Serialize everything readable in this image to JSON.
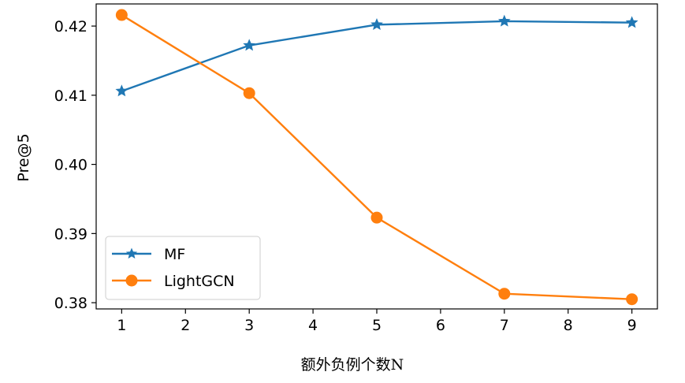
{
  "chart_data": {
    "type": "line",
    "x": [
      1,
      3,
      5,
      7,
      9
    ],
    "xticks": [
      "1",
      "2",
      "3",
      "4",
      "5",
      "6",
      "7",
      "8",
      "9"
    ],
    "yticks": [
      "0.38",
      "0.39",
      "0.40",
      "0.41",
      "0.42"
    ],
    "xlim": [
      0.6,
      9.4
    ],
    "ylim": [
      0.3791,
      0.4232
    ],
    "ylabel": "Pre@5",
    "xlabel": "额外负例个数N",
    "grid": false,
    "legend_position": "lower-left",
    "series": [
      {
        "name": "MF",
        "marker": "star",
        "color": "#1f77b4",
        "values": [
          0.4106,
          0.4172,
          0.4202,
          0.4207,
          0.4205
        ]
      },
      {
        "name": "LightGCN",
        "marker": "circle",
        "color": "#ff7f0e",
        "values": [
          0.4216,
          0.4103,
          0.3923,
          0.3813,
          0.3805
        ]
      }
    ]
  }
}
